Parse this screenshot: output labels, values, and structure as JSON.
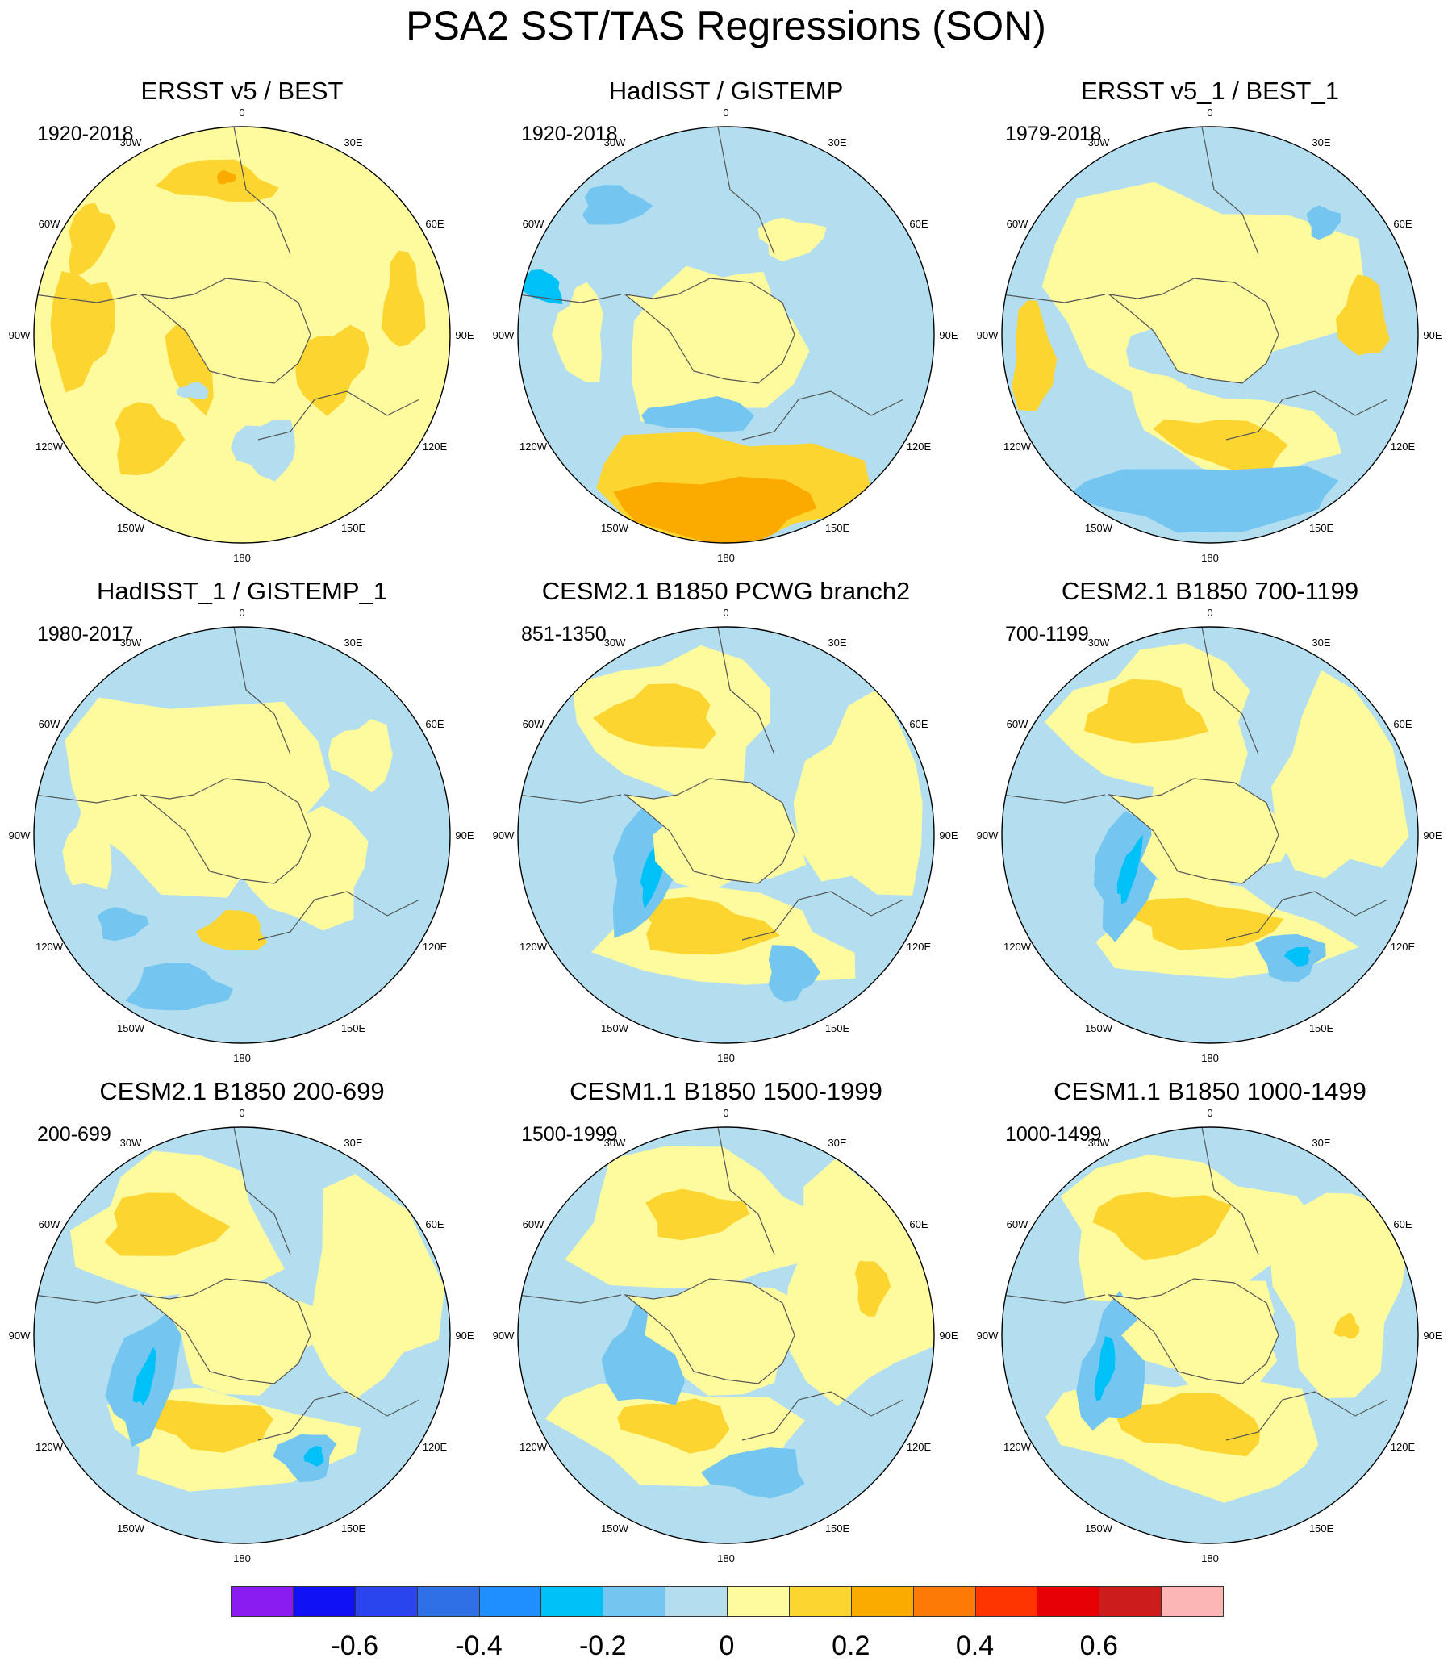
{
  "title": "PSA2 SST/TAS Regressions (SON)",
  "longitude_labels": [
    "0",
    "30E",
    "60E",
    "90E",
    "120E",
    "150E",
    "180",
    "150W",
    "120W",
    "90W",
    "60W",
    "30W"
  ],
  "panels": [
    {
      "title": "ERSST v5 / BEST",
      "period": "1920-2018"
    },
    {
      "title": "HadISST / GISTEMP",
      "period": "1920-2018"
    },
    {
      "title": "ERSST v5_1 / BEST_1",
      "period": "1979-2018"
    },
    {
      "title": "HadISST_1 / GISTEMP_1",
      "period": "1980-2017"
    },
    {
      "title": "CESM2.1 B1850 PCWG branch2",
      "period": "851-1350"
    },
    {
      "title": "CESM2.1 B1850 700-1199",
      "period": "700-1199"
    },
    {
      "title": "CESM2.1 B1850 200-699",
      "period": "200-699"
    },
    {
      "title": "CESM1.1 B1850 1500-1999",
      "period": "1500-1999"
    },
    {
      "title": "CESM1.1 B1850 1000-1499",
      "period": "1000-1499"
    }
  ],
  "colorbar": {
    "colors": [
      "#8a1cf0",
      "#1010f5",
      "#2a44ee",
      "#3070e6",
      "#1f8fff",
      "#00c0f8",
      "#74c6f0",
      "#b2def0",
      "#fefb9e",
      "#fcd530",
      "#fbaa00",
      "#fd7a07",
      "#ff3500",
      "#e80007",
      "#cc1c1c",
      "#fdb6b6"
    ],
    "labels": [
      "-0.6",
      "-0.4",
      "-0.2",
      "0",
      "0.2",
      "0.4",
      "0.6"
    ]
  }
}
